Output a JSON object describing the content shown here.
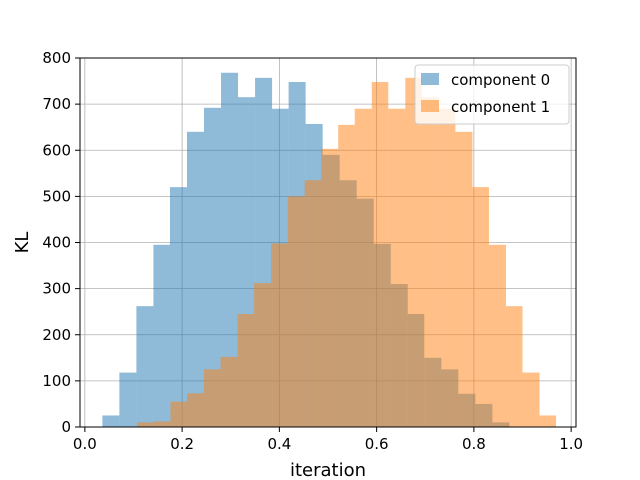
{
  "chart_data": {
    "type": "bar",
    "subtype": "overlapping-histogram",
    "title": "",
    "xlabel": "iteration",
    "ylabel": "KL",
    "xlim": [
      -0.01,
      1.01
    ],
    "ylim": [
      0,
      800
    ],
    "xticks": [
      "0.0",
      "0.2",
      "0.4",
      "0.6",
      "0.8",
      "1.0"
    ],
    "yticks": [
      "0",
      "100",
      "200",
      "300",
      "400",
      "500",
      "600",
      "700",
      "800"
    ],
    "grid": true,
    "legend_position": "top-right",
    "bar_opacity": 0.5,
    "series": [
      {
        "name": "component 0",
        "color": "#1f77b4",
        "bins": [
          [
            0.036,
            0.071,
            25
          ],
          [
            0.071,
            0.106,
            118
          ],
          [
            0.106,
            0.141,
            262
          ],
          [
            0.141,
            0.175,
            395
          ],
          [
            0.175,
            0.21,
            520
          ],
          [
            0.21,
            0.245,
            640
          ],
          [
            0.245,
            0.28,
            692
          ],
          [
            0.28,
            0.315,
            768
          ],
          [
            0.315,
            0.35,
            715
          ],
          [
            0.35,
            0.385,
            757
          ],
          [
            0.385,
            0.419,
            690
          ],
          [
            0.419,
            0.454,
            748
          ],
          [
            0.454,
            0.489,
            657
          ],
          [
            0.489,
            0.524,
            590
          ],
          [
            0.524,
            0.559,
            535
          ],
          [
            0.559,
            0.594,
            495
          ],
          [
            0.594,
            0.629,
            397
          ],
          [
            0.629,
            0.664,
            310
          ],
          [
            0.664,
            0.698,
            245
          ],
          [
            0.698,
            0.733,
            150
          ],
          [
            0.733,
            0.768,
            125
          ],
          [
            0.768,
            0.803,
            72
          ],
          [
            0.803,
            0.838,
            50
          ],
          [
            0.838,
            0.873,
            10
          ]
        ]
      },
      {
        "name": "component 1",
        "color": "#ff7f0e",
        "bins": [
          [
            0.107,
            0.141,
            10
          ],
          [
            0.141,
            0.176,
            12
          ],
          [
            0.176,
            0.21,
            55
          ],
          [
            0.21,
            0.245,
            73
          ],
          [
            0.245,
            0.279,
            125
          ],
          [
            0.279,
            0.314,
            152
          ],
          [
            0.314,
            0.348,
            245
          ],
          [
            0.348,
            0.383,
            312
          ],
          [
            0.383,
            0.417,
            398
          ],
          [
            0.417,
            0.452,
            500
          ],
          [
            0.452,
            0.486,
            535
          ],
          [
            0.486,
            0.521,
            603
          ],
          [
            0.521,
            0.555,
            655
          ],
          [
            0.555,
            0.59,
            690
          ],
          [
            0.59,
            0.624,
            748
          ],
          [
            0.624,
            0.659,
            690
          ],
          [
            0.659,
            0.693,
            757
          ],
          [
            0.693,
            0.728,
            715
          ],
          [
            0.728,
            0.762,
            690
          ],
          [
            0.762,
            0.797,
            640
          ],
          [
            0.797,
            0.831,
            520
          ],
          [
            0.831,
            0.866,
            395
          ],
          [
            0.866,
            0.9,
            262
          ],
          [
            0.9,
            0.935,
            118
          ],
          [
            0.935,
            0.969,
            25
          ]
        ]
      }
    ]
  }
}
